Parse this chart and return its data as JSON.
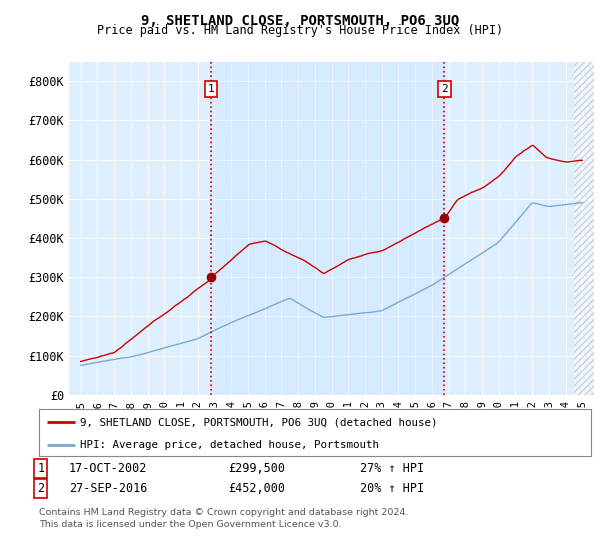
{
  "title": "9, SHETLAND CLOSE, PORTSMOUTH, PO6 3UQ",
  "subtitle": "Price paid vs. HM Land Registry's House Price Index (HPI)",
  "ylim": [
    0,
    850000
  ],
  "yticks": [
    0,
    100000,
    200000,
    300000,
    400000,
    500000,
    600000,
    700000,
    800000
  ],
  "ytick_labels": [
    "£0",
    "£100K",
    "£200K",
    "£300K",
    "£400K",
    "£500K",
    "£600K",
    "£700K",
    "£800K"
  ],
  "background_color": "#ffffff",
  "plot_bg_color": "#ddeeff",
  "grid_color": "#ffffff",
  "sale1_date_label": "17-OCT-2002",
  "sale1_price": 299500,
  "sale1_hpi": "27% ↑ HPI",
  "sale1_x": 2002.8,
  "sale2_date_label": "27-SEP-2016",
  "sale2_price": 452000,
  "sale2_hpi": "20% ↑ HPI",
  "sale2_x": 2016.75,
  "red_line_color": "#cc0000",
  "blue_line_color": "#7aaad0",
  "legend_label_red": "9, SHETLAND CLOSE, PORTSMOUTH, PO6 3UQ (detached house)",
  "legend_label_blue": "HPI: Average price, detached house, Portsmouth",
  "footer1": "Contains HM Land Registry data © Crown copyright and database right 2024.",
  "footer2": "This data is licensed under the Open Government Licence v3.0.",
  "vline_color": "#cc0000",
  "marker_color": "#990000",
  "number_box_color": "#cc0000",
  "xtick_years": [
    1995,
    1996,
    1997,
    1998,
    1999,
    2000,
    2001,
    2002,
    2003,
    2004,
    2005,
    2006,
    2007,
    2008,
    2009,
    2010,
    2011,
    2012,
    2013,
    2014,
    2015,
    2016,
    2017,
    2018,
    2019,
    2020,
    2021,
    2022,
    2023,
    2024,
    2025
  ],
  "xlim_left": 1994.3,
  "xlim_right": 2025.7
}
